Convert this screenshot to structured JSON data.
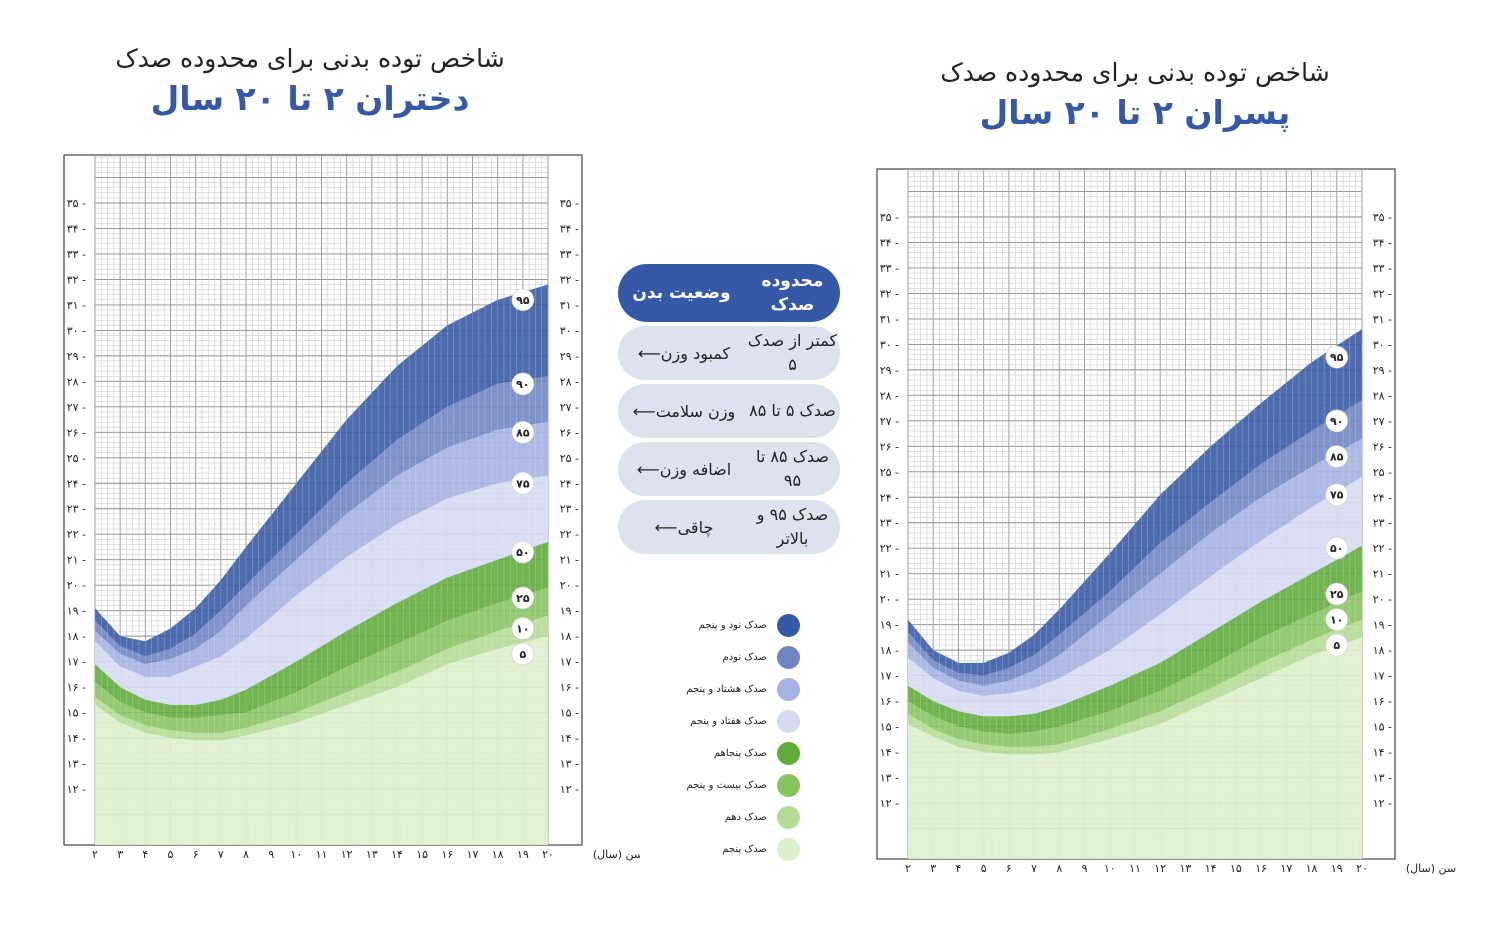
{
  "girls_title": {
    "subtitle": "شاخص توده بدنی برای محدوده صدک",
    "title": "دختران ۲ تا ۲۰ سال"
  },
  "boys_title": {
    "subtitle": "شاخص توده بدنی برای محدوده صدک",
    "title": "پسران ۲ تا ۲۰ سال"
  },
  "status_table": {
    "header_percentile": "محدوده صدک",
    "header_status": "وضعیت بدن",
    "rows": [
      {
        "range": "کمتر از صدک ۵",
        "status": "کمبود وزن",
        "arrow": "⟵"
      },
      {
        "range": "صدک ۵ تا ۸۵",
        "status": "وزن سلامت",
        "arrow": "⟵"
      },
      {
        "range": "صدک ۸۵ تا ۹۵",
        "status": "اضافه وزن",
        "arrow": "⟵"
      },
      {
        "range": "صدک ۹۵ و بالاتر",
        "status": "چاقی",
        "arrow": "⟵"
      }
    ]
  },
  "color_legend": [
    {
      "label": "صدک نود و پنجم",
      "color": "#3559a6"
    },
    {
      "label": "صدک نودم",
      "color": "#6f84c4"
    },
    {
      "label": "صدک هشتاد و پنجم",
      "color": "#a4b1e3"
    },
    {
      "label": "صدک هفتاد و پنجم",
      "color": "#d5dbf1"
    },
    {
      "label": "صدک پنجاهم",
      "color": "#5fac3a"
    },
    {
      "label": "صدک بیست و پنجم",
      "color": "#86c45e"
    },
    {
      "label": "صدک دهم",
      "color": "#b4dc94"
    },
    {
      "label": "صدک پنجم",
      "color": "#dcf0cc"
    }
  ],
  "chart_data": [
    {
      "type": "area",
      "title": "دختران ۲ تا ۲۰ سال",
      "xlabel": "سن (سال)",
      "ylabel": "",
      "xlim": [
        2,
        20
      ],
      "ylim": [
        11,
        37
      ],
      "x_tick_labels": [
        "۲",
        "۳",
        "۴",
        "۵",
        "۶",
        "۷",
        "۸",
        "۹",
        "۱۰",
        "۱۱",
        "۱۲",
        "۱۳",
        "۱۴",
        "۱۵",
        "۱۶",
        "۱۷",
        "۱۸",
        "۱۹",
        "۲۰"
      ],
      "y_tick_labels": [
        "۱۲",
        "۱۳",
        "۱۴",
        "۱۵",
        "۱۶",
        "۱۷",
        "۱۸",
        "۱۹",
        "۲۰",
        "۲۱",
        "۲۲",
        "۲۳",
        "۲۴",
        "۲۵",
        "۲۶",
        "۲۷",
        "۲۸",
        "۲۹",
        "۳۰",
        "۳۱",
        "۳۲",
        "۳۳",
        "۳۴",
        "۳۵"
      ],
      "grid": true,
      "ages": [
        2,
        3,
        4,
        5,
        6,
        7,
        8,
        10,
        12,
        14,
        16,
        18,
        20
      ],
      "series": [
        {
          "name": "۹۵",
          "values": [
            19.1,
            18.0,
            17.8,
            18.3,
            19.1,
            20.2,
            21.5,
            24.0,
            26.5,
            28.6,
            30.2,
            31.2,
            31.8
          ]
        },
        {
          "name": "۹۰",
          "values": [
            18.6,
            17.6,
            17.2,
            17.5,
            18.1,
            19.0,
            20.0,
            22.0,
            24.0,
            25.7,
            27.0,
            27.9,
            28.2
          ]
        },
        {
          "name": "۸۵",
          "values": [
            18.2,
            17.3,
            16.9,
            17.1,
            17.5,
            18.2,
            19.2,
            21.0,
            22.8,
            24.3,
            25.4,
            26.1,
            26.4
          ]
        },
        {
          "name": "۷۵",
          "values": [
            17.8,
            16.8,
            16.4,
            16.4,
            16.8,
            17.2,
            17.9,
            19.6,
            21.1,
            22.4,
            23.4,
            24.0,
            24.3
          ]
        },
        {
          "name": "۵۰",
          "values": [
            16.9,
            16.0,
            15.5,
            15.3,
            15.3,
            15.5,
            15.9,
            17.0,
            18.2,
            19.3,
            20.3,
            21.0,
            21.7
          ]
        },
        {
          "name": "۲۵",
          "values": [
            16.2,
            15.4,
            15.0,
            14.8,
            14.8,
            14.9,
            15.0,
            15.8,
            16.8,
            17.7,
            18.6,
            19.3,
            19.9
          ]
        },
        {
          "name": "۱۰",
          "values": [
            15.6,
            14.9,
            14.5,
            14.3,
            14.2,
            14.2,
            14.4,
            15.0,
            15.8,
            16.6,
            17.5,
            18.2,
            18.8
          ]
        },
        {
          "name": "۵",
          "values": [
            15.3,
            14.6,
            14.2,
            14.0,
            13.9,
            13.9,
            14.1,
            14.6,
            15.3,
            16.0,
            16.9,
            17.5,
            18.0
          ]
        }
      ],
      "label_ages": {
        "95": 19.0,
        "90": 19.0,
        "85": 19.0,
        "75": 19.0,
        "50": 19.0,
        "25": 19.0,
        "10": 19.0,
        "5": 19.0
      },
      "label_values": {
        "95": 31.2,
        "90": 27.9,
        "85": 26.0,
        "75": 24.0,
        "50": 21.3,
        "25": 19.5,
        "10": 18.3,
        "5": 17.3
      }
    },
    {
      "type": "area",
      "title": "پسران ۲ تا ۲۰ سال",
      "xlabel": "سن (سال)",
      "ylabel": "",
      "xlim": [
        2,
        20
      ],
      "ylim": [
        11,
        37
      ],
      "x_tick_labels": [
        "۲",
        "۳",
        "۴",
        "۵",
        "۶",
        "۷",
        "۸",
        "۹",
        "۱۰",
        "۱۱",
        "۱۲",
        "۱۳",
        "۱۴",
        "۱۵",
        "۱۶",
        "۱۷",
        "۱۸",
        "۱۹",
        "۲۰"
      ],
      "y_tick_labels": [
        "۱۲",
        "۱۳",
        "۱۴",
        "۱۵",
        "۱۶",
        "۱۷",
        "۱۸",
        "۱۹",
        "۲۰",
        "۲۱",
        "۲۲",
        "۲۳",
        "۲۴",
        "۲۵",
        "۲۶",
        "۲۷",
        "۲۸",
        "۲۹",
        "۳۰",
        "۳۱",
        "۳۲",
        "۳۳",
        "۳۴",
        "۳۵"
      ],
      "grid": true,
      "ages": [
        2,
        3,
        4,
        5,
        6,
        7,
        8,
        10,
        12,
        14,
        16,
        18,
        20
      ],
      "series": [
        {
          "name": "۹۵",
          "values": [
            19.2,
            18.0,
            17.5,
            17.5,
            17.9,
            18.6,
            19.6,
            21.8,
            24.1,
            26.0,
            27.7,
            29.3,
            30.6
          ]
        },
        {
          "name": "۹۰",
          "values": [
            18.7,
            17.6,
            17.1,
            17.0,
            17.3,
            17.8,
            18.6,
            20.3,
            22.2,
            23.8,
            25.3,
            26.6,
            27.8
          ]
        },
        {
          "name": "۸۵",
          "values": [
            18.3,
            17.3,
            16.8,
            16.6,
            16.8,
            17.2,
            17.8,
            19.4,
            21.0,
            22.6,
            24.0,
            25.2,
            26.3
          ]
        },
        {
          "name": "۷۵",
          "values": [
            17.7,
            16.9,
            16.4,
            16.2,
            16.3,
            16.5,
            16.9,
            18.0,
            19.4,
            20.9,
            22.3,
            23.6,
            24.8
          ]
        },
        {
          "name": "۵۰",
          "values": [
            16.6,
            16.0,
            15.6,
            15.4,
            15.4,
            15.5,
            15.8,
            16.6,
            17.5,
            18.7,
            19.9,
            21.0,
            22.1
          ]
        },
        {
          "name": "۲۵",
          "values": [
            16.0,
            15.4,
            15.0,
            14.8,
            14.7,
            14.8,
            15.0,
            15.6,
            16.4,
            17.4,
            18.5,
            19.4,
            20.3
          ]
        },
        {
          "name": "۱۰",
          "values": [
            15.5,
            14.9,
            14.5,
            14.3,
            14.2,
            14.2,
            14.3,
            14.9,
            15.6,
            16.5,
            17.5,
            18.4,
            19.2
          ]
        },
        {
          "name": "۵",
          "values": [
            15.1,
            14.6,
            14.2,
            14.0,
            13.9,
            13.9,
            14.0,
            14.5,
            15.1,
            16.0,
            16.9,
            17.8,
            18.5
          ]
        }
      ],
      "label_ages": {
        "95": 19.0,
        "90": 19.0,
        "85": 19.0,
        "75": 19.0,
        "50": 19.0,
        "25": 19.0,
        "10": 19.0,
        "5": 19.0
      },
      "label_values": {
        "95": 29.5,
        "90": 27.0,
        "85": 25.6,
        "75": 24.1,
        "50": 22.0,
        "25": 20.2,
        "10": 19.2,
        "5": 18.2
      }
    }
  ]
}
